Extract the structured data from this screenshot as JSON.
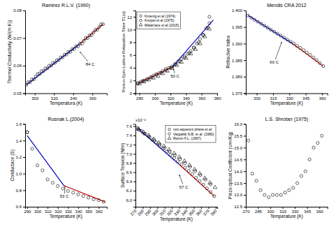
{
  "chart_data": [
    {
      "type": "scatter",
      "title": "Ramirez R.L.V. (1990)",
      "xlabel": "Temperatura (K)",
      "ylabel": "Thermal Conductivity (W/(m·K))",
      "xlim": [
        290,
        375
      ],
      "ylim": [
        0.05,
        0.08
      ],
      "xticks": [
        300,
        320,
        340,
        360
      ],
      "yticks": [
        0.05,
        0.06,
        0.07,
        0.08
      ],
      "series": [
        {
          "type": "scatter",
          "marker": "circle",
          "color": "black",
          "x": [
            291,
            293,
            295,
            297,
            299,
            301,
            303,
            305,
            307,
            309,
            311,
            313,
            315,
            317,
            319,
            321,
            323,
            325,
            327,
            329,
            331,
            333,
            335,
            337,
            339,
            341,
            343,
            345,
            347,
            349,
            351,
            353,
            355,
            357,
            359,
            361,
            363,
            365,
            367,
            369,
            371
          ],
          "values": [
            0.053,
            0.054,
            0.054,
            0.055,
            0.055,
            0.056,
            0.057,
            0.057,
            0.058,
            0.058,
            0.059,
            0.059,
            0.06,
            0.06,
            0.061,
            0.061,
            0.062,
            0.062,
            0.063,
            0.063,
            0.064,
            0.064,
            0.065,
            0.065,
            0.066,
            0.066,
            0.067,
            0.067,
            0.068,
            0.068,
            0.069,
            0.07,
            0.07,
            0.071,
            0.071,
            0.072,
            0.073,
            0.073,
            0.074,
            0.075,
            0.075
          ]
        },
        {
          "type": "line",
          "color": "#0000cc",
          "x": [
            291,
            347
          ],
          "values": [
            0.053,
            0.068
          ]
        },
        {
          "type": "line",
          "color": "#cc0000",
          "x": [
            347,
            371
          ],
          "values": [
            0.068,
            0.075
          ]
        }
      ],
      "annotations": [
        {
          "text": "84 C",
          "x": 347,
          "y": 0.065,
          "text_x": 353,
          "text_y": 0.06
        }
      ]
    },
    {
      "type": "scatter",
      "xlabel": "Temperature (K)",
      "ylabel": "Proton-Spin-Lattice Relaxation Time T1(s)",
      "xlim": [
        275,
        380
      ],
      "ylim": [
        0,
        13
      ],
      "xticks": [
        280,
        300,
        320,
        340,
        360,
        380
      ],
      "yticks": [
        0,
        2,
        4,
        6,
        8,
        10,
        12
      ],
      "legend": "upper left",
      "series": [
        {
          "type": "scatter",
          "marker": "circle",
          "color": "black",
          "name": "Kroenig et al (1974)",
          "x": [
            278,
            282,
            286,
            290,
            294,
            298,
            302,
            306,
            310,
            314,
            318,
            322,
            326,
            330,
            334,
            338,
            342,
            346,
            350,
            354,
            358,
            362,
            366,
            370
          ],
          "values": [
            1.5,
            1.8,
            2.0,
            2.2,
            2.5,
            2.8,
            3.0,
            3.2,
            3.5,
            3.8,
            4.0,
            4.2,
            4.6,
            5.0,
            5.4,
            5.8,
            6.2,
            6.6,
            7.2,
            7.8,
            8.5,
            9.2,
            10.2,
            11.0
          ]
        },
        {
          "type": "scatter",
          "marker": "circle",
          "color": "black",
          "name": "Knopel et al (1975)",
          "x": [
            278,
            284,
            290,
            296,
            302,
            308,
            314,
            320,
            326,
            332,
            338,
            344,
            350,
            356,
            362,
            368
          ],
          "values": [
            1.6,
            1.9,
            2.2,
            2.5,
            2.9,
            3.2,
            3.6,
            4.0,
            4.5,
            5.0,
            5.6,
            6.3,
            7.1,
            8.0,
            9.1,
            10.3
          ]
        },
        {
          "type": "scatter",
          "marker": "triangle",
          "color": "black",
          "name": "Matarrace et al (2015)",
          "x": [
            280,
            286,
            292,
            298,
            304,
            310,
            316,
            322,
            328,
            334,
            340,
            346,
            352,
            358,
            364,
            370
          ],
          "values": [
            1.5,
            1.8,
            2.1,
            2.4,
            2.7,
            3.1,
            3.5,
            3.9,
            4.4,
            4.9,
            5.5,
            6.2,
            6.9,
            7.8,
            8.9,
            10.1
          ]
        },
        {
          "type": "scatter",
          "marker": "circle",
          "color": "black",
          "x": [
            370
          ],
          "values": [
            12.0
          ]
        },
        {
          "type": "line",
          "color": "#cc0000",
          "x": [
            278,
            323
          ],
          "values": [
            1.5,
            4.2
          ]
        },
        {
          "type": "line",
          "color": "#0000cc",
          "x": [
            323,
            375
          ],
          "values": [
            4.2,
            11.5
          ]
        }
      ],
      "annotations": [
        {
          "text": "50 C",
          "x": 323,
          "y": 4.3,
          "text_x": 320,
          "text_y": 2.5
        }
      ]
    },
    {
      "type": "scatter",
      "title": "Mendis CRA 2012",
      "xlabel": "Temperature (K)",
      "ylabel": "Refractive Index",
      "xlim": [
        290,
        365
      ],
      "ylim": [
        1.375,
        1.4
      ],
      "xticks": [
        300,
        315,
        330,
        345,
        360
      ],
      "yticks": [
        1.375,
        {
          "value": 1.38,
          "label": "1.380"
        },
        1.385,
        {
          "value": 1.39,
          "label": "1.390"
        },
        1.395,
        {
          "value": 1.4,
          "label": "1.400"
        }
      ],
      "series": [
        {
          "type": "scatter",
          "marker": "circle",
          "color": "black",
          "x": [
            292,
            295,
            298,
            301,
            304,
            307,
            310,
            313,
            316,
            319,
            322,
            325,
            328,
            331,
            334,
            337,
            340,
            343,
            346,
            349,
            352,
            355,
            358,
            361
          ],
          "values": [
            1.3985,
            1.3978,
            1.3972,
            1.3966,
            1.396,
            1.3954,
            1.3948,
            1.3942,
            1.3936,
            1.393,
            1.3924,
            1.3918,
            1.3912,
            1.3906,
            1.39,
            1.3893,
            1.3887,
            1.388,
            1.3873,
            1.3866,
            1.3858,
            1.385,
            1.3841,
            1.3832
          ]
        },
        {
          "type": "line",
          "color": "#0000cc",
          "x": [
            292,
            333
          ],
          "values": [
            1.3985,
            1.39
          ]
        },
        {
          "type": "line",
          "color": "#cc0000",
          "x": [
            333,
            361
          ],
          "values": [
            1.39,
            1.3832
          ]
        }
      ],
      "annotations": [
        {
          "text": "60 C",
          "x": 323,
          "y": 1.3905,
          "text_x": 312,
          "text_y": 1.384
        }
      ]
    },
    {
      "type": "scatter",
      "title": "Rusnak L.(2004)",
      "xlabel": "Temperature (K)",
      "ylabel": "Conductace (S)",
      "xlim": [
        288,
        368
      ],
      "ylim": [
        0.6,
        1.6
      ],
      "xticks": [
        290,
        300,
        310,
        320,
        330,
        340,
        350,
        360
      ],
      "yticks": [
        0.6,
        0.8,
        {
          "value": 1,
          "label": "1.0"
        },
        1.2,
        1.4,
        1.6
      ],
      "series": [
        {
          "type": "scatter",
          "marker": "circle",
          "color": "black",
          "x": [
            290,
            295,
            300,
            305,
            310,
            315,
            320,
            325,
            330,
            335,
            340,
            345,
            350,
            355,
            360,
            365
          ],
          "values": [
            1.5,
            1.3,
            1.1,
            1.04,
            0.93,
            0.89,
            0.85,
            0.82,
            0.79,
            0.77,
            0.75,
            0.73,
            0.71,
            0.69,
            0.68,
            0.66
          ]
        },
        {
          "type": "scatter",
          "marker": "circle",
          "color": "black",
          "x": [
            290
          ],
          "values": [
            1.5
          ]
        },
        {
          "type": "line",
          "color": "#0000cc",
          "x": [
            290,
            326
          ],
          "values": [
            1.46,
            0.855
          ]
        },
        {
          "type": "line",
          "color": "#cc0000",
          "x": [
            326,
            366
          ],
          "values": [
            0.855,
            0.66
          ]
        }
      ],
      "annotations": [
        {
          "text": "53 C",
          "x": 327,
          "y": 0.855,
          "text_x": 322,
          "text_y": 0.71
        }
      ]
    },
    {
      "type": "scatter",
      "xlabel": "Temperature (K)",
      "ylabel": "Surface Tension (N/m)",
      "xlim": [
        270,
        382
      ],
      "ylim": [
        5.85,
        7.65
      ],
      "xticks": [
        270,
        280,
        290,
        300,
        310,
        320,
        330,
        340,
        350,
        360,
        370,
        380
      ],
      "yticks": [
        {
          "value": 6,
          "label": "6.0"
        },
        6.2,
        6.4,
        6.6,
        6.8,
        {
          "value": 7,
          "label": "7.0"
        },
        7.2,
        7.4,
        7.6
      ],
      "legend": "upper right",
      "series": [
        {
          "type": "scatter",
          "marker": "circle",
          "color": "black",
          "name": "non-aqueous phase et al.",
          "x": [
            273,
            278,
            283,
            288,
            293,
            298,
            303,
            308,
            313,
            318,
            323,
            328,
            333,
            338,
            343,
            348,
            353,
            358,
            363,
            368,
            373,
            378
          ],
          "values": [
            7.56,
            7.5,
            7.44,
            7.38,
            7.31,
            7.25,
            7.18,
            7.12,
            7.05,
            6.98,
            6.91,
            6.84,
            6.77,
            6.7,
            6.63,
            6.56,
            6.48,
            6.41,
            6.33,
            6.25,
            6.17,
            6.08
          ]
        },
        {
          "type": "scatter",
          "marker": "circle",
          "color": "black",
          "name": "Vargaftik N.B. et al. (1980)",
          "x": [
            275,
            282,
            289,
            296,
            303,
            310,
            317,
            324,
            331,
            338,
            345,
            352,
            359,
            366,
            373
          ],
          "values": [
            7.52,
            7.44,
            7.37,
            7.29,
            7.21,
            7.13,
            7.05,
            6.97,
            6.89,
            6.8,
            6.72,
            6.63,
            6.54,
            6.44,
            6.34
          ]
        },
        {
          "type": "scatter",
          "marker": "triangle",
          "color": "black",
          "name": "Romm F.L. (1997)",
          "x": [
            274,
            281,
            288,
            295,
            302,
            309,
            316,
            323,
            330,
            337,
            344,
            351,
            358,
            365,
            372,
            379
          ],
          "values": [
            7.54,
            7.47,
            7.4,
            7.32,
            7.24,
            7.17,
            7.09,
            7.01,
            6.93,
            6.84,
            6.75,
            6.66,
            6.57,
            6.47,
            6.37,
            6.27
          ]
        },
        {
          "type": "line",
          "color": "#0000cc",
          "x": [
            273,
            330
          ],
          "values": [
            7.56,
            6.77
          ]
        },
        {
          "type": "line",
          "color": "#cc0000",
          "x": [
            330,
            378
          ],
          "values": [
            6.77,
            6.08
          ]
        }
      ],
      "annotations": [
        {
          "text": "x10⁻²"
        },
        {
          "text": "57 C",
          "x": 330,
          "y": 6.55,
          "text_x": 330,
          "text_y": 6.25
        }
      ]
    },
    {
      "type": "scatter",
      "title": "L.S. Shrober (1975)",
      "xlabel": "Temperature (K)",
      "ylabel": "Piezo-optical Coefficient (cm²/Kg)",
      "xlim": [
        270,
        370
      ],
      "ylim": [
        12.5,
        16.0
      ],
      "xticks": [
        270,
        285,
        300,
        315,
        330,
        345,
        360
      ],
      "yticks": [
        12.5,
        {
          "value": 13,
          "label": "13.0"
        },
        13.5,
        {
          "value": 14,
          "label": "14.0"
        },
        14.5,
        {
          "value": 15,
          "label": "15.0"
        },
        15.5,
        {
          "value": 16,
          "label": "16.0"
        }
      ],
      "series": [
        {
          "type": "scatter",
          "marker": "circle",
          "color": "black",
          "x": [
            273,
            278,
            283,
            288,
            293,
            298,
            303,
            308,
            313,
            318,
            323,
            328,
            333,
            338,
            343,
            348,
            353,
            358,
            363
          ],
          "values": [
            15.3,
            13.9,
            13.6,
            13.2,
            13.0,
            12.9,
            13.0,
            13.0,
            13.0,
            13.1,
            13.2,
            13.3,
            13.5,
            13.8,
            14.0,
            14.5,
            15.0,
            15.2,
            15.5
          ]
        }
      ]
    }
  ]
}
